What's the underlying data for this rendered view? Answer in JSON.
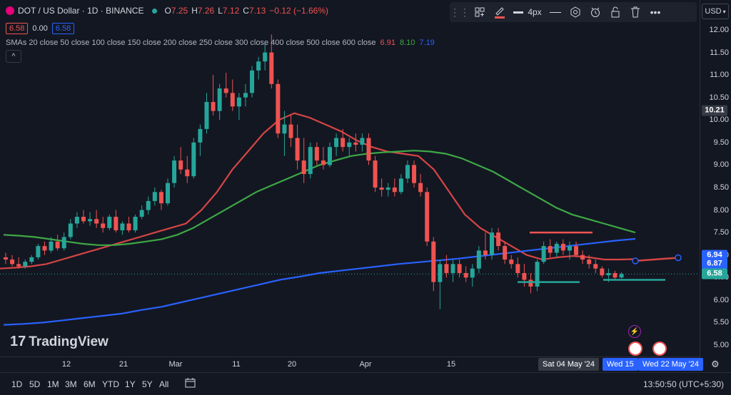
{
  "header": {
    "symbol_title": "DOT / US Dollar · 1D · BINANCE",
    "ohlc_o_label": "O",
    "ohlc_o": "7.25",
    "ohlc_h_label": "H",
    "ohlc_h": "7.26",
    "ohlc_l_label": "L",
    "ohlc_l": "7.12",
    "ohlc_c_label": "C",
    "ohlc_c": "7.13",
    "ohlc_change": "−0.12 (−1.66%)",
    "sell_price": "6.58",
    "spread": "0.00",
    "buy_price": "6.58",
    "sma_label": "SMAs 20 close 50 close 100 close 150 close 200 close 250 close 300 close 400 close 500 close 600 close",
    "sma_values": [
      "6.91",
      "8.10",
      "7.19"
    ],
    "collapse_glyph": "^"
  },
  "toolbar": {
    "line_width_label": "4px",
    "currency_label": "USD"
  },
  "logo": {
    "text": "TradingView",
    "mark": "17"
  },
  "colors": {
    "background": "#131722",
    "up": "#26a69a",
    "down": "#ef5350",
    "sma_red": "#d64545",
    "sma_green": "#3ea845",
    "sma_blue": "#2962ff",
    "last_price_badge": "#26a69a",
    "blue_badge": "#2962ff"
  },
  "price_axis": {
    "ticks": [
      "12.00",
      "11.50",
      "11.00",
      "10.50",
      "10.00",
      "9.50",
      "9.00",
      "8.50",
      "8.00",
      "7.50",
      "7.00",
      "6.50",
      "6.00",
      "5.50",
      "5.00"
    ],
    "badges": [
      {
        "value": "10.21",
        "kind": "crosshair"
      },
      {
        "value": "6.94",
        "kind": "blue"
      },
      {
        "value": "6.87",
        "kind": "blue"
      },
      {
        "value": "6.58",
        "kind": "last"
      }
    ]
  },
  "time_axis": {
    "labels": [
      "12",
      "21",
      "Mar",
      "11",
      "20",
      "Apr",
      "15"
    ],
    "chips": [
      "Sat 04 May '24",
      "Wed 15",
      "Wed 22 May '24"
    ]
  },
  "bottom_bar": {
    "ranges": [
      "1D",
      "5D",
      "1M",
      "3M",
      "6M",
      "YTD",
      "1Y",
      "5Y",
      "All"
    ],
    "clock": "13:50:50 (UTC+5:30)"
  },
  "chart_data": {
    "type": "candlestick",
    "symbol": "DOT / US Dollar",
    "interval": "1D",
    "ylim": [
      4.8,
      12.3
    ],
    "ohlc": [
      [
        6.95,
        7.05,
        6.8,
        6.9
      ],
      [
        6.9,
        7.0,
        6.75,
        6.8
      ],
      [
        6.8,
        6.95,
        6.7,
        6.75
      ],
      [
        6.75,
        6.9,
        6.7,
        6.85
      ],
      [
        6.85,
        7.0,
        6.8,
        6.95
      ],
      [
        6.95,
        7.25,
        6.9,
        7.2
      ],
      [
        7.2,
        7.3,
        7.0,
        7.1
      ],
      [
        7.1,
        7.4,
        7.05,
        7.3
      ],
      [
        7.3,
        7.45,
        7.1,
        7.15
      ],
      [
        7.15,
        7.5,
        7.1,
        7.4
      ],
      [
        7.4,
        7.8,
        7.35,
        7.7
      ],
      [
        7.7,
        7.95,
        7.6,
        7.85
      ],
      [
        7.85,
        8.0,
        7.7,
        7.75
      ],
      [
        7.75,
        7.95,
        7.65,
        7.8
      ],
      [
        7.8,
        8.0,
        7.6,
        7.7
      ],
      [
        7.7,
        7.85,
        7.5,
        7.6
      ],
      [
        7.6,
        7.9,
        7.55,
        7.85
      ],
      [
        7.85,
        8.0,
        7.5,
        7.55
      ],
      [
        7.55,
        7.75,
        7.45,
        7.7
      ],
      [
        7.7,
        7.85,
        7.5,
        7.55
      ],
      [
        7.55,
        7.9,
        7.5,
        7.85
      ],
      [
        7.85,
        8.1,
        7.8,
        8.0
      ],
      [
        8.0,
        8.3,
        7.9,
        8.2
      ],
      [
        8.2,
        8.5,
        8.1,
        8.4
      ],
      [
        8.4,
        8.45,
        8.0,
        8.15
      ],
      [
        8.15,
        8.7,
        8.1,
        8.6
      ],
      [
        8.6,
        9.2,
        8.5,
        9.1
      ],
      [
        9.1,
        9.4,
        8.8,
        8.9
      ],
      [
        8.9,
        9.2,
        8.6,
        8.75
      ],
      [
        8.75,
        9.6,
        8.7,
        9.5
      ],
      [
        9.5,
        9.9,
        9.2,
        9.8
      ],
      [
        9.8,
        10.6,
        9.7,
        10.4
      ],
      [
        10.4,
        11.0,
        10.1,
        10.2
      ],
      [
        10.2,
        10.8,
        10.0,
        10.7
      ],
      [
        10.7,
        11.05,
        10.5,
        10.6
      ],
      [
        10.6,
        10.9,
        10.2,
        10.3
      ],
      [
        10.3,
        10.6,
        10.0,
        10.5
      ],
      [
        10.5,
        10.8,
        10.3,
        10.6
      ],
      [
        10.6,
        11.2,
        10.5,
        11.1
      ],
      [
        11.1,
        11.4,
        10.9,
        11.3
      ],
      [
        11.3,
        11.7,
        11.1,
        11.5
      ],
      [
        11.5,
        11.9,
        10.7,
        10.8
      ],
      [
        10.8,
        10.9,
        9.6,
        9.7
      ],
      [
        9.7,
        10.2,
        9.2,
        9.9
      ],
      [
        9.9,
        10.1,
        9.4,
        9.6
      ],
      [
        9.6,
        9.9,
        8.9,
        9.1
      ],
      [
        9.1,
        9.6,
        8.6,
        8.8
      ],
      [
        8.8,
        9.5,
        8.7,
        9.4
      ],
      [
        9.4,
        9.5,
        9.0,
        9.1
      ],
      [
        9.1,
        9.4,
        8.9,
        9.0
      ],
      [
        9.0,
        9.5,
        8.95,
        9.4
      ],
      [
        9.4,
        9.7,
        9.2,
        9.6
      ],
      [
        9.6,
        9.8,
        9.3,
        9.4
      ],
      [
        9.4,
        9.6,
        9.2,
        9.5
      ],
      [
        9.5,
        9.7,
        9.3,
        9.45
      ],
      [
        9.45,
        9.7,
        9.3,
        9.6
      ],
      [
        9.6,
        9.7,
        9.0,
        9.1
      ],
      [
        9.1,
        9.2,
        8.4,
        8.5
      ],
      [
        8.5,
        8.7,
        8.3,
        8.45
      ],
      [
        8.45,
        8.6,
        8.3,
        8.5
      ],
      [
        8.5,
        8.7,
        8.3,
        8.4
      ],
      [
        8.4,
        8.8,
        8.35,
        8.7
      ],
      [
        8.7,
        9.1,
        8.6,
        9.0
      ],
      [
        9.0,
        9.1,
        8.5,
        8.6
      ],
      [
        8.6,
        8.8,
        8.3,
        8.4
      ],
      [
        8.4,
        8.5,
        7.2,
        7.3
      ],
      [
        7.3,
        7.4,
        6.2,
        6.4
      ],
      [
        6.4,
        6.9,
        5.8,
        6.8
      ],
      [
        6.8,
        7.0,
        6.5,
        6.6
      ],
      [
        6.6,
        6.9,
        6.4,
        6.8
      ],
      [
        6.8,
        6.9,
        6.5,
        6.6
      ],
      [
        6.6,
        6.75,
        6.4,
        6.5
      ],
      [
        6.5,
        6.8,
        6.3,
        6.7
      ],
      [
        6.7,
        7.2,
        6.6,
        7.1
      ],
      [
        7.1,
        7.5,
        6.9,
        7.0
      ],
      [
        7.0,
        7.6,
        6.9,
        7.5
      ],
      [
        7.5,
        7.6,
        7.1,
        7.2
      ],
      [
        7.2,
        7.3,
        6.8,
        6.9
      ],
      [
        6.9,
        7.0,
        6.7,
        6.8
      ],
      [
        6.8,
        6.95,
        6.5,
        6.6
      ],
      [
        6.6,
        6.8,
        6.3,
        6.45
      ],
      [
        6.45,
        6.6,
        6.15,
        6.3
      ],
      [
        6.3,
        6.9,
        6.2,
        6.85
      ],
      [
        6.85,
        7.3,
        6.8,
        7.2
      ],
      [
        7.2,
        7.35,
        6.95,
        7.05
      ],
      [
        7.05,
        7.3,
        6.95,
        7.25
      ],
      [
        7.25,
        7.35,
        7.0,
        7.1
      ],
      [
        7.1,
        7.3,
        6.9,
        7.2
      ],
      [
        7.2,
        7.3,
        6.95,
        7.0
      ],
      [
        7.0,
        7.1,
        6.8,
        6.9
      ],
      [
        6.9,
        7.0,
        6.7,
        6.8
      ],
      [
        6.8,
        6.9,
        6.6,
        6.7
      ],
      [
        6.7,
        6.75,
        6.5,
        6.55
      ],
      [
        6.55,
        6.7,
        6.4,
        6.6
      ],
      [
        6.6,
        6.65,
        6.45,
        6.5
      ],
      [
        6.5,
        6.62,
        6.48,
        6.58
      ]
    ],
    "sma_lines": [
      {
        "name": "SMA 20",
        "color": "#d64545",
        "values": [
          6.7,
          6.72,
          6.75,
          6.8,
          6.9,
          7.0,
          7.1,
          7.2,
          7.3,
          7.4,
          7.5,
          7.6,
          7.7,
          8.0,
          8.4,
          8.9,
          9.3,
          9.7,
          10.0,
          10.15,
          10.05,
          9.9,
          9.75,
          9.55,
          9.4,
          9.3,
          9.25,
          9.2,
          8.9,
          8.4,
          7.9,
          7.6,
          7.4,
          7.2,
          7.0,
          6.9,
          6.95,
          6.98,
          6.95,
          6.9,
          6.9,
          6.91
        ]
      },
      {
        "name": "SMA 50",
        "color": "#3ea845",
        "values": [
          7.45,
          7.43,
          7.4,
          7.35,
          7.3,
          7.25,
          7.22,
          7.22,
          7.25,
          7.3,
          7.35,
          7.45,
          7.6,
          7.8,
          8.0,
          8.2,
          8.4,
          8.55,
          8.7,
          8.85,
          9.0,
          9.1,
          9.2,
          9.25,
          9.28,
          9.3,
          9.32,
          9.3,
          9.25,
          9.15,
          9.0,
          8.85,
          8.65,
          8.45,
          8.25,
          8.05,
          7.9,
          7.8,
          7.7,
          7.6,
          7.5
        ]
      },
      {
        "name": "SMA 100",
        "color": "#2962ff",
        "values": [
          5.45,
          5.47,
          5.5,
          5.55,
          5.6,
          5.65,
          5.7,
          5.78,
          5.85,
          5.95,
          6.05,
          6.15,
          6.25,
          6.35,
          6.45,
          6.52,
          6.6,
          6.65,
          6.7,
          6.75,
          6.8,
          6.84,
          6.88,
          6.92,
          6.97,
          7.02,
          7.07,
          7.12,
          7.17,
          7.22,
          7.27,
          7.32,
          7.36
        ]
      }
    ],
    "drawings": [
      {
        "type": "hline",
        "color": "#ef5350",
        "y": 7.5
      },
      {
        "type": "hline",
        "color": "#26a69a",
        "y": 6.4
      },
      {
        "type": "hline",
        "color": "#26a69a",
        "y": 6.45
      },
      {
        "type": "projection",
        "color": "#d64545",
        "y_from": 6.87,
        "y_to": 6.94
      }
    ],
    "last_price": 6.58,
    "grid": false
  }
}
